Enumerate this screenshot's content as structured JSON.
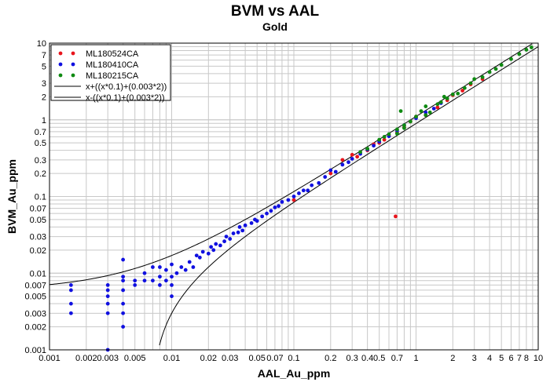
{
  "chart_data": {
    "type": "scatter",
    "title": "BVM vs AAL",
    "subtitle": "Gold",
    "xlabel": "AAL_Au_ppm",
    "ylabel": "BVM_Au_ppm",
    "xscale": "log",
    "yscale": "log",
    "xlim": [
      0.001,
      10
    ],
    "ylim": [
      0.001,
      10
    ],
    "grid": true,
    "legend_position": "top-left",
    "x_tick_labels": [
      "0.001",
      "0.002",
      "0.003",
      "0.005",
      "0.01",
      "0.02",
      "0.03",
      "0.05",
      "0.07",
      "0.1",
      "0.2",
      "0.3",
      "0.4",
      "0.5",
      "0.7",
      "1",
      "2",
      "3",
      "4",
      "5",
      "6",
      "7",
      "8",
      "10"
    ],
    "x_tick_values": [
      0.001,
      0.002,
      0.003,
      0.005,
      0.01,
      0.02,
      0.03,
      0.05,
      0.07,
      0.1,
      0.2,
      0.3,
      0.4,
      0.5,
      0.7,
      1,
      2,
      3,
      4,
      5,
      6,
      7,
      8,
      10
    ],
    "y_tick_labels": [
      "0.001",
      "0.002",
      "0.003",
      "0.005",
      "0.007",
      "0.01",
      "0.02",
      "0.03",
      "0.05",
      "0.07",
      "0.1",
      "0.2",
      "0.3",
      "0.5",
      "0.7",
      "1",
      "2",
      "3",
      "5",
      "7",
      "10"
    ],
    "y_tick_values": [
      0.001,
      0.002,
      0.003,
      0.005,
      0.007,
      0.01,
      0.02,
      0.03,
      0.05,
      0.07,
      0.1,
      0.2,
      0.3,
      0.5,
      0.7,
      1,
      2,
      3,
      5,
      7,
      10
    ],
    "series": [
      {
        "name": "ML180524CA",
        "color": "#e8141c",
        "points": [
          [
            0.1,
            0.09
          ],
          [
            0.25,
            0.3
          ],
          [
            0.3,
            0.35
          ],
          [
            0.33,
            0.33
          ],
          [
            0.4,
            0.4
          ],
          [
            0.45,
            0.48
          ],
          [
            0.5,
            0.5
          ],
          [
            0.6,
            0.62
          ],
          [
            0.7,
            0.68
          ],
          [
            0.8,
            0.8
          ],
          [
            0.9,
            0.95
          ],
          [
            1.0,
            1.1
          ],
          [
            1.2,
            1.15
          ],
          [
            1.5,
            1.45
          ],
          [
            1.8,
            1.8
          ],
          [
            2.0,
            2.1
          ],
          [
            2.4,
            2.4
          ],
          [
            2.8,
            2.9
          ],
          [
            3.5,
            3.4
          ],
          [
            0.68,
            0.055
          ],
          [
            0.2,
            0.2
          ],
          [
            0.55,
            0.55
          ]
        ]
      },
      {
        "name": "ML180410CA",
        "color": "#1010e0",
        "points": [
          [
            0.0015,
            0.003
          ],
          [
            0.0015,
            0.004
          ],
          [
            0.0015,
            0.006
          ],
          [
            0.0015,
            0.007
          ],
          [
            0.003,
            0.004
          ],
          [
            0.003,
            0.005
          ],
          [
            0.003,
            0.006
          ],
          [
            0.003,
            0.007
          ],
          [
            0.003,
            0.003
          ],
          [
            0.003,
            0.001
          ],
          [
            0.004,
            0.002
          ],
          [
            0.004,
            0.003
          ],
          [
            0.004,
            0.004
          ],
          [
            0.004,
            0.006
          ],
          [
            0.004,
            0.008
          ],
          [
            0.004,
            0.009
          ],
          [
            0.004,
            0.015
          ],
          [
            0.005,
            0.007
          ],
          [
            0.005,
            0.008
          ],
          [
            0.006,
            0.008
          ],
          [
            0.006,
            0.01
          ],
          [
            0.007,
            0.008
          ],
          [
            0.007,
            0.012
          ],
          [
            0.008,
            0.007
          ],
          [
            0.008,
            0.009
          ],
          [
            0.008,
            0.012
          ],
          [
            0.009,
            0.008
          ],
          [
            0.009,
            0.011
          ],
          [
            0.01,
            0.005
          ],
          [
            0.01,
            0.007
          ],
          [
            0.01,
            0.009
          ],
          [
            0.01,
            0.013
          ],
          [
            0.011,
            0.01
          ],
          [
            0.012,
            0.012
          ],
          [
            0.013,
            0.011
          ],
          [
            0.014,
            0.014
          ],
          [
            0.015,
            0.012
          ],
          [
            0.016,
            0.017
          ],
          [
            0.017,
            0.016
          ],
          [
            0.018,
            0.019
          ],
          [
            0.02,
            0.018
          ],
          [
            0.021,
            0.022
          ],
          [
            0.022,
            0.02
          ],
          [
            0.023,
            0.024
          ],
          [
            0.025,
            0.023
          ],
          [
            0.027,
            0.026
          ],
          [
            0.028,
            0.03
          ],
          [
            0.03,
            0.028
          ],
          [
            0.032,
            0.033
          ],
          [
            0.035,
            0.034
          ],
          [
            0.036,
            0.04
          ],
          [
            0.038,
            0.036
          ],
          [
            0.04,
            0.042
          ],
          [
            0.045,
            0.045
          ],
          [
            0.048,
            0.05
          ],
          [
            0.05,
            0.048
          ],
          [
            0.055,
            0.055
          ],
          [
            0.06,
            0.06
          ],
          [
            0.065,
            0.065
          ],
          [
            0.07,
            0.072
          ],
          [
            0.075,
            0.075
          ],
          [
            0.08,
            0.085
          ],
          [
            0.09,
            0.09
          ],
          [
            0.1,
            0.1
          ],
          [
            0.11,
            0.11
          ],
          [
            0.12,
            0.12
          ],
          [
            0.13,
            0.12
          ],
          [
            0.14,
            0.14
          ],
          [
            0.16,
            0.15
          ],
          [
            0.18,
            0.18
          ],
          [
            0.2,
            0.22
          ],
          [
            0.22,
            0.21
          ],
          [
            0.25,
            0.26
          ],
          [
            0.28,
            0.28
          ],
          [
            0.3,
            0.31
          ],
          [
            0.35,
            0.36
          ],
          [
            0.4,
            0.41
          ],
          [
            0.45,
            0.46
          ],
          [
            0.5,
            0.52
          ],
          [
            0.6,
            0.61
          ],
          [
            0.7,
            0.72
          ],
          [
            0.8,
            0.85
          ],
          [
            1.0,
            1.05
          ],
          [
            1.2,
            1.25
          ],
          [
            1.4,
            1.4
          ],
          [
            1.6,
            1.65
          ]
        ]
      },
      {
        "name": "ML180215CA",
        "color": "#0f8a12",
        "points": [
          [
            0.35,
            0.38
          ],
          [
            0.4,
            0.42
          ],
          [
            0.5,
            0.55
          ],
          [
            0.55,
            0.6
          ],
          [
            0.6,
            0.65
          ],
          [
            0.7,
            0.75
          ],
          [
            0.75,
            1.3
          ],
          [
            0.8,
            0.85
          ],
          [
            0.9,
            0.95
          ],
          [
            1.0,
            1.1
          ],
          [
            1.1,
            1.3
          ],
          [
            1.2,
            1.5
          ],
          [
            1.3,
            1.25
          ],
          [
            1.5,
            1.6
          ],
          [
            1.6,
            1.7
          ],
          [
            1.8,
            1.9
          ],
          [
            2.0,
            2.15
          ],
          [
            2.2,
            2.2
          ],
          [
            2.5,
            2.6
          ],
          [
            2.8,
            3.0
          ],
          [
            3.0,
            3.4
          ],
          [
            3.5,
            3.6
          ],
          [
            4.0,
            4.2
          ],
          [
            4.5,
            4.6
          ],
          [
            5.0,
            5.2
          ],
          [
            6.0,
            6.2
          ],
          [
            7.0,
            7.2
          ],
          [
            8.0,
            8.2
          ],
          [
            8.8,
            8.8
          ],
          [
            0.7,
            0.66
          ],
          [
            0.8,
            0.78
          ],
          [
            1.2,
            1.15
          ],
          [
            1.7,
            2.0
          ]
        ]
      }
    ],
    "reference_lines": [
      {
        "name": "x+((x*0.1)+(0.003*2))"
      },
      {
        "name": "x-((x*0.1)+(0.003*2))"
      }
    ]
  }
}
